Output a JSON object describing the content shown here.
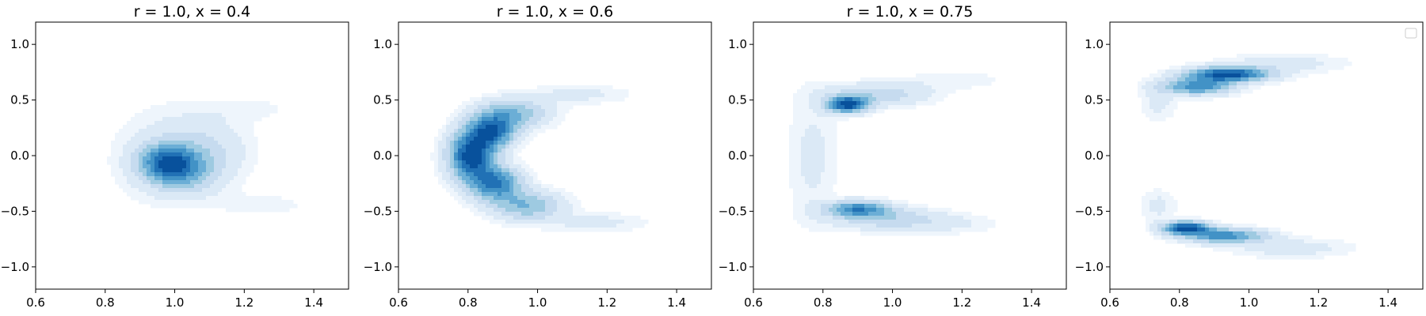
{
  "chart_data": [
    {
      "type": "contour",
      "title": "r = 1.0, x = 0.4",
      "xlim": [
        0.6,
        1.5
      ],
      "ylim": [
        -1.2,
        1.2
      ],
      "xticks": [
        "0.6",
        "0.8",
        "1.0",
        "1.2",
        "1.4"
      ],
      "yticks": [
        "−1.0",
        "−0.5",
        "0.0",
        "0.5",
        "1.0"
      ],
      "density_blobs": [
        {
          "x": 0.98,
          "y": -0.06,
          "sx": 0.055,
          "sy": 0.11,
          "w": 1.0
        },
        {
          "x": 1.03,
          "y": -0.17,
          "sx": 0.07,
          "sy": 0.12,
          "w": 0.45
        },
        {
          "x": 1.08,
          "y": 0.06,
          "sx": 0.09,
          "sy": 0.18,
          "w": 0.3
        },
        {
          "x": 1.2,
          "y": 0.42,
          "sx": 0.1,
          "sy": 0.08,
          "w": 0.09
        },
        {
          "x": 1.25,
          "y": -0.44,
          "sx": 0.11,
          "sy": 0.08,
          "w": 0.09
        },
        {
          "x": 0.96,
          "y": 0.0,
          "sx": 0.1,
          "sy": 0.3,
          "w": 0.15
        }
      ],
      "legend": false
    },
    {
      "type": "contour",
      "title": "r = 1.0, x = 0.6",
      "xlim": [
        0.6,
        1.5
      ],
      "ylim": [
        -1.2,
        1.2
      ],
      "xticks": [
        "0.6",
        "0.8",
        "1.0",
        "1.2",
        "1.4"
      ],
      "yticks": [
        "−1.0",
        "−0.5",
        "0.0",
        "0.5",
        "1.0"
      ],
      "density_blobs": [
        {
          "x": 0.81,
          "y": 0.0,
          "sx": 0.045,
          "sy": 0.15,
          "w": 1.0
        },
        {
          "x": 0.87,
          "y": 0.22,
          "sx": 0.045,
          "sy": 0.1,
          "w": 0.8
        },
        {
          "x": 0.88,
          "y": -0.25,
          "sx": 0.05,
          "sy": 0.1,
          "w": 0.75
        },
        {
          "x": 0.93,
          "y": 0.38,
          "sx": 0.07,
          "sy": 0.09,
          "w": 0.45
        },
        {
          "x": 0.97,
          "y": -0.45,
          "sx": 0.07,
          "sy": 0.09,
          "w": 0.45
        },
        {
          "x": 1.12,
          "y": 0.55,
          "sx": 0.1,
          "sy": 0.06,
          "w": 0.12
        },
        {
          "x": 1.17,
          "y": -0.6,
          "sx": 0.1,
          "sy": 0.06,
          "w": 0.12
        }
      ],
      "legend": false
    },
    {
      "type": "contour",
      "title": "r = 1.0, x = 0.75",
      "xlim": [
        0.6,
        1.5
      ],
      "ylim": [
        -1.2,
        1.2
      ],
      "xticks": [
        "0.6",
        "0.8",
        "1.0",
        "1.2",
        "1.4"
      ],
      "yticks": [
        "−1.0",
        "−0.5",
        "0.0",
        "0.5",
        "1.0"
      ],
      "density_blobs": [
        {
          "x": 0.87,
          "y": 0.46,
          "sx": 0.04,
          "sy": 0.05,
          "w": 1.0
        },
        {
          "x": 0.9,
          "y": -0.48,
          "sx": 0.06,
          "sy": 0.05,
          "w": 0.7
        },
        {
          "x": 0.96,
          "y": 0.55,
          "sx": 0.1,
          "sy": 0.07,
          "w": 0.3
        },
        {
          "x": 0.99,
          "y": -0.57,
          "sx": 0.11,
          "sy": 0.07,
          "w": 0.3
        },
        {
          "x": 0.77,
          "y": 0.0,
          "sx": 0.05,
          "sy": 0.4,
          "w": 0.12
        },
        {
          "x": 1.18,
          "y": 0.68,
          "sx": 0.1,
          "sy": 0.06,
          "w": 0.08
        },
        {
          "x": 1.18,
          "y": -0.62,
          "sx": 0.1,
          "sy": 0.06,
          "w": 0.08
        }
      ],
      "legend": false
    },
    {
      "type": "contour",
      "title": "",
      "xlim": [
        0.6,
        1.5
      ],
      "ylim": [
        -1.2,
        1.2
      ],
      "xticks": [
        "0.6",
        "0.8",
        "1.0",
        "1.2",
        "1.4"
      ],
      "yticks": [
        "−1.0",
        "−0.5",
        "0.0",
        "0.5",
        "1.0"
      ],
      "density_blobs": [
        {
          "x": 0.94,
          "y": 0.73,
          "sx": 0.08,
          "sy": 0.045,
          "w": 1.0
        },
        {
          "x": 0.85,
          "y": 0.62,
          "sx": 0.07,
          "sy": 0.05,
          "w": 0.7
        },
        {
          "x": 0.82,
          "y": -0.65,
          "sx": 0.045,
          "sy": 0.04,
          "w": 1.0
        },
        {
          "x": 0.93,
          "y": -0.72,
          "sx": 0.08,
          "sy": 0.045,
          "w": 0.7
        },
        {
          "x": 1.1,
          "y": 0.83,
          "sx": 0.12,
          "sy": 0.06,
          "w": 0.15
        },
        {
          "x": 1.12,
          "y": -0.83,
          "sx": 0.12,
          "sy": 0.06,
          "w": 0.15
        },
        {
          "x": 0.74,
          "y": 0.48,
          "sx": 0.035,
          "sy": 0.12,
          "w": 0.12
        },
        {
          "x": 0.74,
          "y": -0.45,
          "sx": 0.035,
          "sy": 0.1,
          "w": 0.12
        }
      ],
      "legend": true
    }
  ],
  "colors": {
    "levels": [
      "#ffffff",
      "#eef5fc",
      "#dbe9f6",
      "#c6dbef",
      "#9ecae1",
      "#6baed6",
      "#4292c6",
      "#2171b5",
      "#08519c"
    ],
    "axis": "#000000"
  }
}
